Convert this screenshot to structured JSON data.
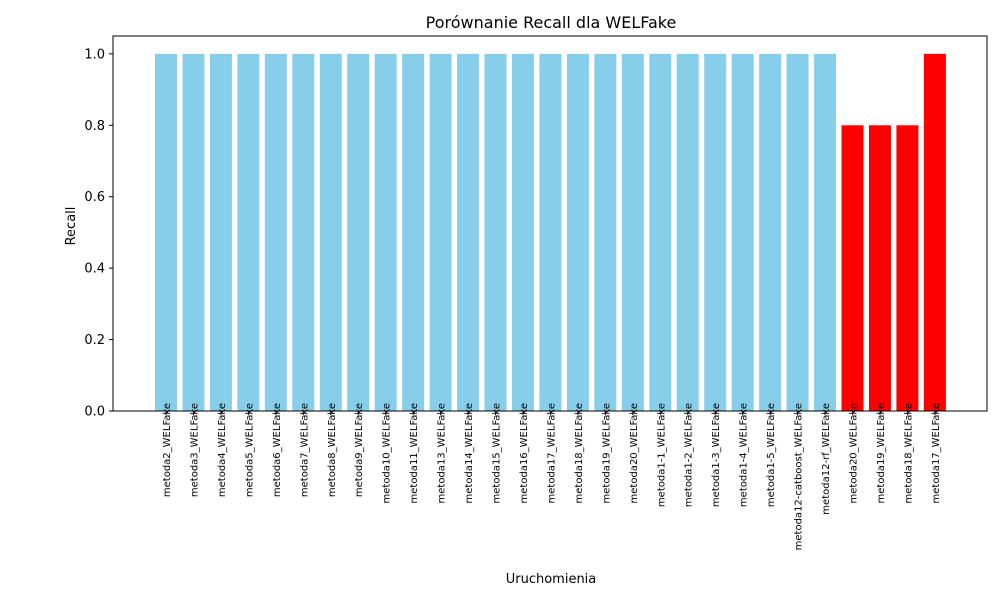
{
  "chart_data": {
    "type": "bar",
    "title": "Porównanie Recall dla WELFake",
    "xlabel": "Uruchomienia",
    "ylabel": "Recall",
    "ylim": [
      0,
      1.05
    ],
    "yticks": [
      "0.0",
      "0.2",
      "0.4",
      "0.6",
      "0.8",
      "1.0"
    ],
    "categories": [
      "metoda2_WELFake",
      "metoda3_WELFake",
      "metoda4_WELFake",
      "metoda5_WELFake",
      "metoda6_WELFake",
      "metoda7_WELFake",
      "metoda8_WELFake",
      "metoda9_WELFake",
      "metoda10_WELFake",
      "metoda11_WELFake",
      "metoda13_WELFake",
      "metoda14_WELFake",
      "metoda15_WELFake",
      "metoda16_WELFake",
      "metoda17_WELFake",
      "metoda18_WELFake",
      "metoda19_WELFake",
      "metoda20_WELFake",
      "metoda1-1_WELFake",
      "metoda1-2_WELFake",
      "metoda1-3_WELFake",
      "metoda1-4_WELFake",
      "metoda1-5_WELFake",
      "metoda12-catboost_WELFake",
      "metoda12-rf_WELFake",
      "metoda20_WELFake",
      "metoda19_WELFake",
      "metoda18_WELFake",
      "metoda17_WELFake"
    ],
    "values": [
      1.0,
      1.0,
      1.0,
      1.0,
      1.0,
      1.0,
      1.0,
      1.0,
      1.0,
      1.0,
      1.0,
      1.0,
      1.0,
      1.0,
      1.0,
      1.0,
      1.0,
      1.0,
      1.0,
      1.0,
      1.0,
      1.0,
      1.0,
      1.0,
      1.0,
      0.8,
      0.8,
      0.8,
      1.0
    ],
    "colors": [
      "#87ceeb",
      "#87ceeb",
      "#87ceeb",
      "#87ceeb",
      "#87ceeb",
      "#87ceeb",
      "#87ceeb",
      "#87ceeb",
      "#87ceeb",
      "#87ceeb",
      "#87ceeb",
      "#87ceeb",
      "#87ceeb",
      "#87ceeb",
      "#87ceeb",
      "#87ceeb",
      "#87ceeb",
      "#87ceeb",
      "#87ceeb",
      "#87ceeb",
      "#87ceeb",
      "#87ceeb",
      "#87ceeb",
      "#87ceeb",
      "#87ceeb",
      "#ff0000",
      "#ff0000",
      "#ff0000",
      "#ff0000"
    ],
    "grid": false,
    "legend": "none"
  }
}
